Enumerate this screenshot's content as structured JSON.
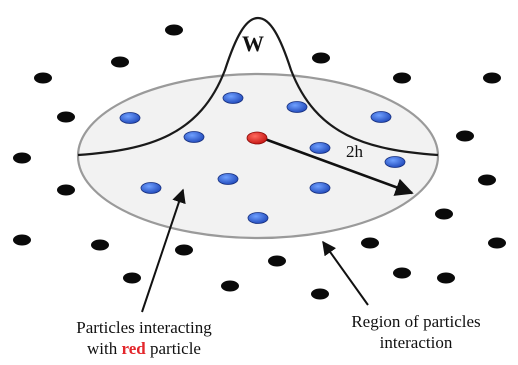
{
  "kernel_label": "W",
  "radius_label": "2h",
  "label_left_line1": "Particles interacting",
  "label_left_with": "with",
  "label_left_red": "red",
  "label_left_particle": "particle",
  "label_right_line1": "Region of particles",
  "label_right_line2": "interaction",
  "colors": {
    "outer_particle": "#0a0a0a",
    "inner_particle": "#2f62d8",
    "center_particle": "#e3262b",
    "region_outline": "#9a9a9a"
  }
}
